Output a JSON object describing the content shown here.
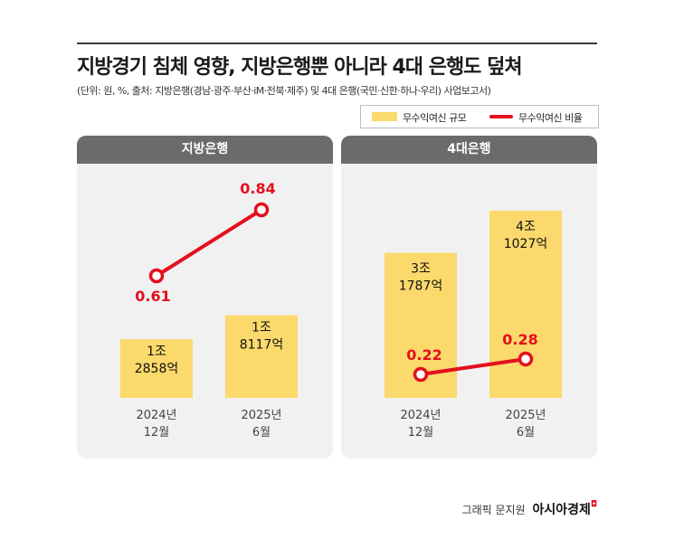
{
  "title": "지방경기 침체 영향, 지방은행뿐 아니라 4대 은행도 덮쳐",
  "subtitle": "(단위: 원, %, 출처: 지방은행(경남·광주·부산·iM·전북·제주) 및 4대 은행(국민·신한·하나·우리) 사업보고서)",
  "legend": {
    "bar_label": "무수익여신 규모",
    "line_label": "무수익여신 비율"
  },
  "credit": {
    "text": "그래픽 문지원",
    "brand": "아시아경제"
  },
  "colors": {
    "bar": "#fbd96c",
    "line": "#e3101e",
    "panel_bg": "#f1f1f1",
    "header_bg": "#6b6b6b"
  },
  "chart_data": [
    {
      "type": "bar",
      "title": "지방은행",
      "categories": [
        [
          "2024년",
          "12월"
        ],
        [
          "2025년",
          "6월"
        ]
      ],
      "series": [
        {
          "name": "무수익여신 규모",
          "values": [
            12858,
            18117
          ],
          "unit": "억 원",
          "labels": [
            [
              "1조",
              "2858억"
            ],
            [
              "1조",
              "8117억"
            ]
          ]
        },
        {
          "name": "무수익여신 비율",
          "type": "line",
          "values": [
            0.61,
            0.84
          ],
          "unit": "%",
          "labels": [
            "0.61",
            "0.84"
          ]
        }
      ]
    },
    {
      "type": "bar",
      "title": "4대은행",
      "categories": [
        [
          "2024년",
          "12월"
        ],
        [
          "2025년",
          "6월"
        ]
      ],
      "series": [
        {
          "name": "무수익여신 규모",
          "values": [
            31787,
            41027
          ],
          "unit": "억 원",
          "labels": [
            [
              "3조",
              "1787억"
            ],
            [
              "4조",
              "1027억"
            ]
          ]
        },
        {
          "name": "무수익여신 비율",
          "type": "line",
          "values": [
            0.22,
            0.28
          ],
          "unit": "%",
          "labels": [
            "0.22",
            "0.28"
          ]
        }
      ]
    }
  ]
}
